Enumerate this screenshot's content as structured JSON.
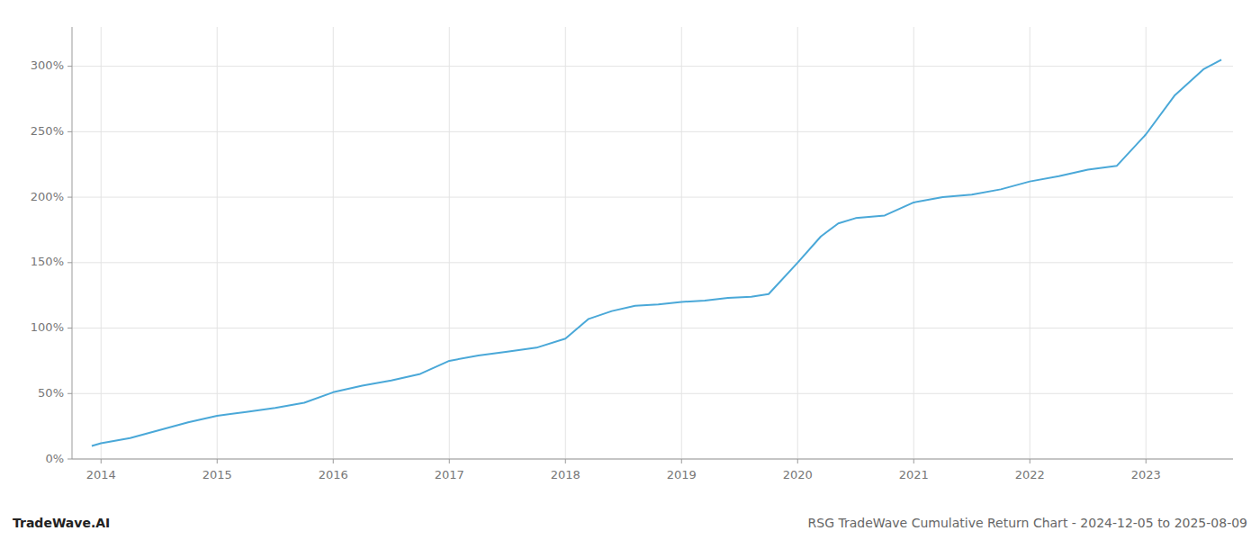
{
  "chart_data": {
    "type": "line",
    "title": "RSG TradeWave Cumulative Return Chart - 2024-12-05 to 2025-08-09",
    "annotations": [
      "TradeWave.AI"
    ],
    "color": "#4aa8d8",
    "grid": true,
    "x": [
      2013.92,
      2014.0,
      2014.25,
      2014.5,
      2014.75,
      2015.0,
      2015.25,
      2015.5,
      2015.75,
      2016.0,
      2016.25,
      2016.5,
      2016.75,
      2017.0,
      2017.25,
      2017.5,
      2017.75,
      2018.0,
      2018.2,
      2018.4,
      2018.6,
      2018.8,
      2019.0,
      2019.2,
      2019.4,
      2019.6,
      2019.75,
      2020.0,
      2020.2,
      2020.35,
      2020.5,
      2020.75,
      2021.0,
      2021.25,
      2021.5,
      2021.75,
      2022.0,
      2022.25,
      2022.5,
      2022.75,
      2023.0,
      2023.25,
      2023.5,
      2023.65
    ],
    "values": [
      10,
      12,
      16,
      22,
      28,
      33,
      36,
      39,
      43,
      51,
      56,
      60,
      65,
      75,
      79,
      82,
      85,
      92,
      107,
      113,
      117,
      118,
      120,
      121,
      123,
      124,
      126,
      150,
      170,
      180,
      184,
      186,
      196,
      200,
      202,
      206,
      212,
      216,
      221,
      224,
      248,
      278,
      298,
      305
    ],
    "xlim": [
      2013.75,
      2023.75
    ],
    "ylim": [
      0,
      330
    ],
    "xticks": [
      2014,
      2015,
      2016,
      2017,
      2018,
      2019,
      2020,
      2021,
      2022,
      2023
    ],
    "yticks": [
      {
        "value": 0,
        "label": "0%"
      },
      {
        "value": 50,
        "label": "50%"
      },
      {
        "value": 100,
        "label": "100%"
      },
      {
        "value": 150,
        "label": "150%"
      },
      {
        "value": 200,
        "label": "200%"
      },
      {
        "value": 250,
        "label": "250%"
      },
      {
        "value": 300,
        "label": "300%"
      }
    ]
  }
}
